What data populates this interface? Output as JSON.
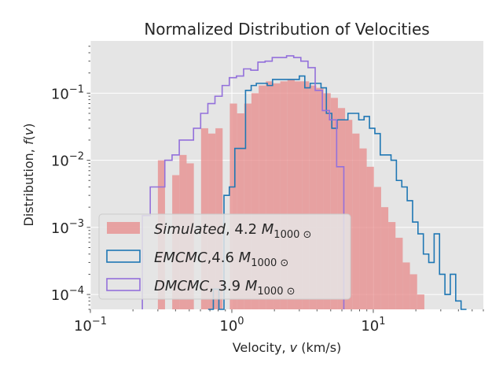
{
  "colors": {
    "background": "#e5e5e5",
    "grid": "#ffffff",
    "simulated": "#e78a8a",
    "emcmc": "#1f77b4",
    "dmcmc": "#9370db"
  },
  "chart_data": {
    "type": "bar",
    "title": "Normalized Distribution of Velocities",
    "xlabel": "Velocity, v (km/s)",
    "ylabel": "Distribution, f(v)",
    "xscale": "log",
    "yscale": "log",
    "xlim": [
      0.1,
      60
    ],
    "ylim": [
      6e-05,
      0.6
    ],
    "grid": true,
    "legend_position": "lower-left",
    "x_ticks": [
      {
        "value": 0.1,
        "base": "10",
        "exp": "−1"
      },
      {
        "value": 1,
        "base": "10",
        "exp": "0"
      },
      {
        "value": 10,
        "base": "10",
        "exp": "1"
      }
    ],
    "y_ticks": [
      {
        "value": 0.0001,
        "base": "10",
        "exp": "−4"
      },
      {
        "value": 0.001,
        "base": "10",
        "exp": "−3"
      },
      {
        "value": 0.01,
        "base": "10",
        "exp": "−2"
      },
      {
        "value": 0.1,
        "base": "10",
        "exp": "−1"
      }
    ],
    "series": [
      {
        "key": "simulated",
        "style": "filled",
        "legend": {
          "name": "Simulated",
          "sep": ", ",
          "value": "4.2",
          "unit": "M",
          "sub": "1000 ⊙"
        },
        "edges": [
          0.3,
          0.337,
          0.379,
          0.426,
          0.479,
          0.539,
          0.606,
          0.681,
          0.766,
          0.861,
          0.968,
          1.089,
          1.224,
          1.376,
          1.548,
          1.74,
          1.957,
          2.2,
          2.474,
          2.782,
          3.128,
          3.517,
          3.954,
          4.446,
          5.0,
          5.622,
          6.321,
          7.107,
          7.992,
          8.986,
          10.1,
          11.36,
          12.77,
          14.36,
          16.15,
          18.16,
          20.42,
          22.96
        ],
        "values": [
          0.01,
          0.0,
          0.006,
          0.012,
          0.009,
          0.0,
          0.03,
          0.025,
          0.03,
          0.0,
          0.07,
          0.05,
          0.07,
          0.1,
          0.13,
          0.15,
          0.14,
          0.15,
          0.16,
          0.15,
          0.15,
          0.13,
          0.12,
          0.1,
          0.085,
          0.06,
          0.04,
          0.025,
          0.015,
          0.008,
          0.004,
          0.002,
          0.0012,
          0.0007,
          0.0003,
          0.0002,
          0.0001
        ]
      },
      {
        "key": "emcmc",
        "style": "step",
        "legend": {
          "name": "EMCMC",
          "sep": ",",
          "value": "4.6",
          "unit": "M",
          "sub": "1000 ⊙"
        },
        "edges": [
          0.68,
          0.74,
          0.81,
          0.88,
          0.96,
          1.05,
          1.15,
          1.25,
          1.37,
          1.49,
          1.63,
          1.78,
          1.94,
          2.12,
          2.31,
          2.52,
          2.75,
          3.0,
          3.28,
          3.58,
          3.91,
          4.27,
          4.66,
          5.09,
          5.55,
          6.06,
          6.62,
          7.22,
          7.89,
          8.61,
          9.4,
          10.26,
          11.2,
          12.23,
          13.35,
          14.57,
          15.91,
          17.37,
          18.96,
          20.7,
          22.6,
          24.67,
          26.93,
          29.4,
          32.1,
          35.04,
          38.26,
          41.76,
          45.6
        ],
        "values": [
          0.0,
          0.00012,
          0.0,
          0.003,
          0.004,
          0.015,
          0.015,
          0.11,
          0.13,
          0.14,
          0.14,
          0.13,
          0.16,
          0.16,
          0.16,
          0.16,
          0.16,
          0.18,
          0.12,
          0.14,
          0.14,
          0.12,
          0.05,
          0.03,
          0.04,
          0.04,
          0.05,
          0.05,
          0.04,
          0.045,
          0.03,
          0.025,
          0.012,
          0.012,
          0.01,
          0.005,
          0.004,
          0.0025,
          0.0012,
          0.0008,
          0.0004,
          0.0003,
          0.0008,
          0.0002,
          0.0001,
          0.0002,
          8e-05,
          6e-05
        ]
      },
      {
        "key": "dmcmc",
        "style": "step",
        "legend": {
          "name": "DMCMC",
          "sep": ", ",
          "value": "3.9",
          "unit": "M",
          "sub": "1000 ⊙"
        },
        "edges": [
          0.233,
          0.265,
          0.298,
          0.336,
          0.378,
          0.425,
          0.477,
          0.536,
          0.602,
          0.677,
          0.76,
          0.854,
          0.96,
          1.078,
          1.211,
          1.361,
          1.529,
          1.718,
          1.93,
          2.169,
          2.437,
          2.738,
          3.076,
          3.457,
          3.884,
          4.364,
          4.904,
          5.51,
          6.191
        ],
        "values": [
          0.0015,
          0.004,
          0.004,
          0.01,
          0.012,
          0.02,
          0.02,
          0.03,
          0.05,
          0.07,
          0.09,
          0.13,
          0.17,
          0.18,
          0.23,
          0.22,
          0.29,
          0.3,
          0.34,
          0.34,
          0.36,
          0.34,
          0.3,
          0.24,
          0.11,
          0.055,
          0.04,
          0.008
        ]
      }
    ]
  }
}
